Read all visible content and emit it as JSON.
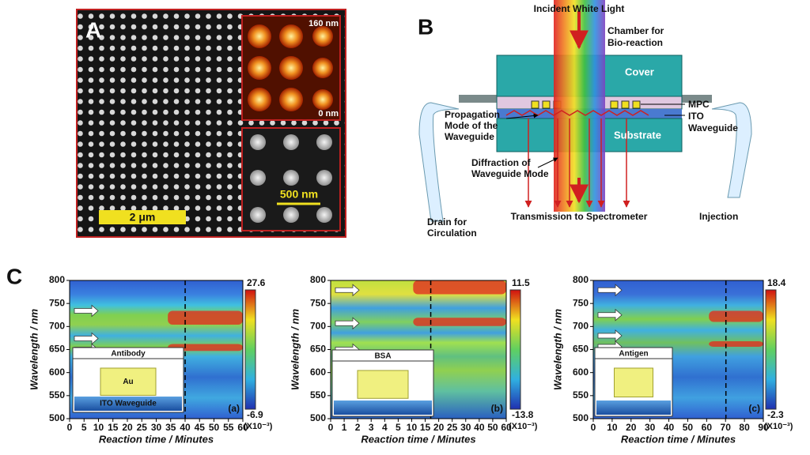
{
  "panel_a": {
    "label": "A",
    "afm_max": "160 nm",
    "afm_min": "0 nm",
    "inset_scale": "500 nm",
    "scale": "2 μm"
  },
  "panel_b": {
    "label": "B",
    "incident": "Incident White Light",
    "chamber": [
      "Chamber for",
      "Bio-reaction"
    ],
    "cover": "Cover",
    "mpc": "MPC",
    "ito": [
      "ITO",
      "Waveguide"
    ],
    "propagation": [
      "Propagation",
      "Mode of the",
      "Waveguide"
    ],
    "substrate": "Substrate",
    "diffraction": [
      "Diffraction of",
      "Waveguide Mode"
    ],
    "drain": [
      "Drain for",
      "Circulation"
    ],
    "transmission": "Transmission to Spectrometer",
    "injection": "Injection"
  },
  "panel_c": {
    "label": "C",
    "plots": [
      {
        "tag": "(a)",
        "y_label": "Wavelength / nm",
        "x_label": "Reaction time / Minutes",
        "yticks": [
          "800",
          "750",
          "700",
          "650",
          "600",
          "550",
          "500"
        ],
        "xticks": [
          "0",
          "5",
          "10",
          "15",
          "20",
          "25",
          "30",
          "35",
          "40",
          "45",
          "50",
          "55",
          "60"
        ],
        "cbar_max": "27.6",
        "cbar_min": "-6.9",
        "cbar_unit": "(X10⁻³)",
        "inset_title": "Antibody",
        "inset_core": "Au",
        "inset_base": "ITO Waveguide"
      },
      {
        "tag": "(b)",
        "y_label": "Wavelength / nm",
        "x_label": "Reaction time / Minutes",
        "yticks": [
          "800",
          "750",
          "700",
          "650",
          "600",
          "550",
          "500"
        ],
        "xticks": [
          "0",
          "1",
          "2",
          "3",
          "4",
          "5",
          "10",
          "15",
          "20",
          "25",
          "30",
          "40",
          "50",
          "60"
        ],
        "cbar_max": "11.5",
        "cbar_min": "-13.8",
        "cbar_unit": "(X10⁻³)",
        "inset_title": "BSA"
      },
      {
        "tag": "(c)",
        "y_label": "Wavelength / nm",
        "x_label": "Reaction time / Minutes",
        "yticks": [
          "800",
          "750",
          "700",
          "650",
          "600",
          "550",
          "500"
        ],
        "xticks": [
          "0",
          "10",
          "20",
          "30",
          "40",
          "50",
          "60",
          "70",
          "80",
          "90"
        ],
        "cbar_max": "18.4",
        "cbar_min": "-2.3",
        "cbar_unit": "(X10⁻³)",
        "inset_title": "Antigen"
      }
    ]
  }
}
